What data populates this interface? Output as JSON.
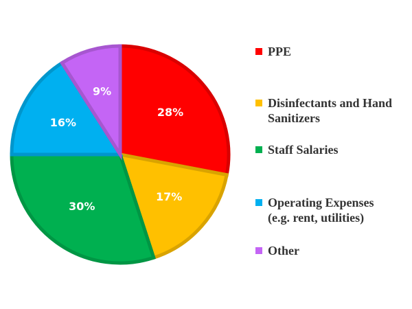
{
  "chart_data": {
    "type": "pie",
    "categories": [
      "PPE",
      "Disinfectants and Hand Sanitizers",
      "Staff Salaries",
      "Operating Expenses (e.g. rent, utilities)",
      "Other"
    ],
    "values": [
      28,
      17,
      30,
      16,
      9
    ],
    "value_labels": [
      "28%",
      "17%",
      "30%",
      "16%",
      "9%"
    ],
    "colors": [
      "#ff0000",
      "#ffc000",
      "#00b050",
      "#00b0f0",
      "#c465f5"
    ],
    "legend": "right"
  }
}
